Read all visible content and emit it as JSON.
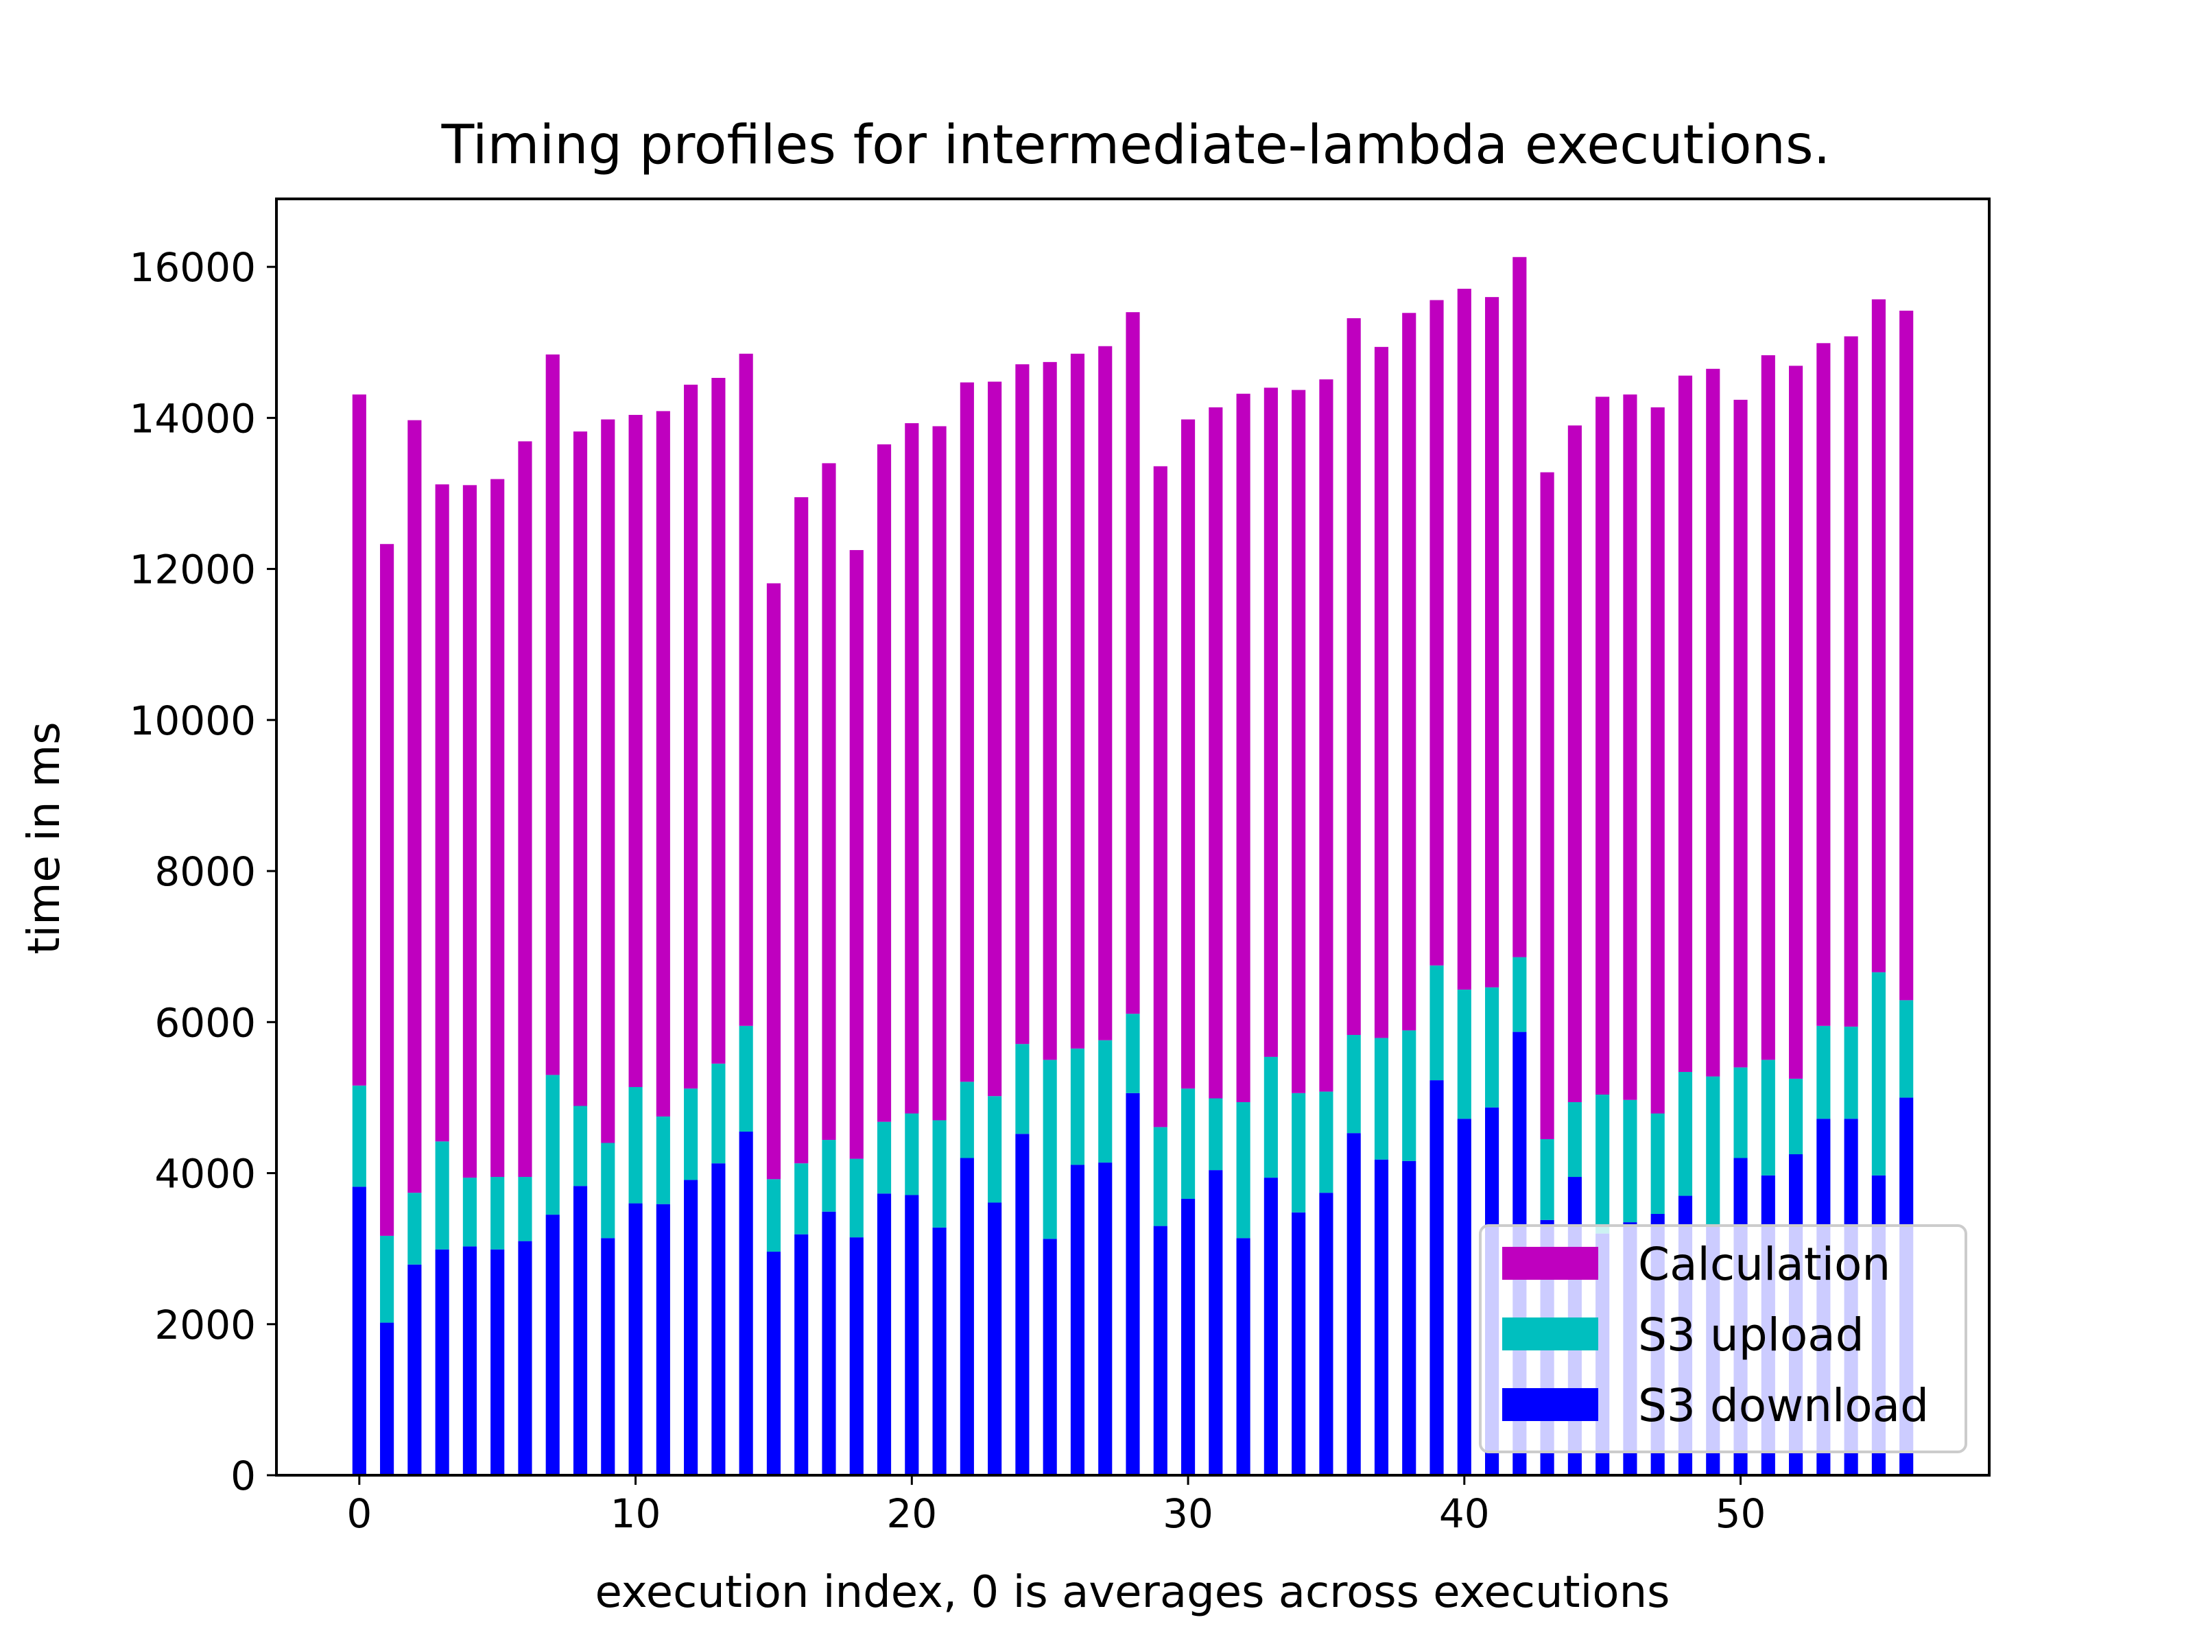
{
  "chart_data": {
    "type": "bar",
    "stacked": true,
    "title": "Timing profiles for intermediate-lambda executions.",
    "xlabel": "execution index, 0 is averages across executions",
    "ylabel": "time in ms",
    "xlim": [
      -3,
      59
    ],
    "ylim": [
      0,
      16900
    ],
    "xticks": [
      0,
      10,
      20,
      30,
      40,
      50
    ],
    "yticks": [
      0,
      2000,
      4000,
      6000,
      8000,
      10000,
      12000,
      14000,
      16000
    ],
    "legend_position": "lower-right",
    "grid": false,
    "x": [
      0,
      1,
      2,
      3,
      4,
      5,
      6,
      7,
      8,
      9,
      10,
      11,
      12,
      13,
      14,
      15,
      16,
      17,
      18,
      19,
      20,
      21,
      22,
      23,
      24,
      25,
      26,
      27,
      28,
      29,
      30,
      31,
      32,
      33,
      34,
      35,
      36,
      37,
      38,
      39,
      40,
      41,
      42,
      43,
      44,
      45,
      46,
      47,
      48,
      49,
      50,
      51,
      52,
      53,
      54,
      55,
      56
    ],
    "series": [
      {
        "name": "S3 download",
        "color": "#0000ff",
        "values": [
          3820,
          2020,
          2790,
          2990,
          3030,
          2990,
          3100,
          3450,
          3830,
          3140,
          3600,
          3590,
          3910,
          4130,
          4550,
          2960,
          3190,
          3490,
          3150,
          3730,
          3710,
          3280,
          4200,
          3610,
          4520,
          3130,
          4110,
          4140,
          5060,
          3300,
          3660,
          4040,
          3140,
          3940,
          3480,
          3740,
          4530,
          4180,
          4160,
          5230,
          4720,
          4870,
          5870,
          3380,
          3950,
          3200,
          3350,
          3460,
          3700,
          3300,
          4200,
          3970,
          4250,
          4720,
          4720,
          3970,
          5000
        ]
      },
      {
        "name": "S3 upload",
        "color": "#00bfbf",
        "values": [
          1340,
          1150,
          950,
          1430,
          910,
          960,
          850,
          1850,
          1060,
          1260,
          1540,
          1160,
          1210,
          1320,
          1400,
          960,
          940,
          950,
          1040,
          950,
          1080,
          1420,
          1010,
          1410,
          1190,
          2370,
          1540,
          1620,
          1050,
          1310,
          1460,
          950,
          1800,
          1600,
          1580,
          1340,
          1300,
          1610,
          1730,
          1520,
          1710,
          1590,
          990,
          1070,
          990,
          1840,
          1620,
          1330,
          1640,
          1980,
          1200,
          1530,
          1000,
          1230,
          1220,
          2690,
          1290
        ]
      },
      {
        "name": "Calculation",
        "color": "#bf00bf",
        "values": [
          9150,
          9160,
          10230,
          8700,
          9170,
          9240,
          9740,
          9540,
          8930,
          9580,
          8900,
          9340,
          9320,
          9080,
          8900,
          7890,
          8820,
          8960,
          8060,
          8970,
          9140,
          9190,
          9260,
          9460,
          9000,
          9240,
          9200,
          9190,
          9290,
          8750,
          8860,
          9150,
          9380,
          8860,
          9310,
          9430,
          9490,
          9150,
          9500,
          8810,
          9280,
          9140,
          9270,
          8830,
          8960,
          9240,
          9340,
          9350,
          9220,
          9370,
          8840,
          9330,
          9440,
          9040,
          9140,
          8910,
          9130
        ]
      }
    ]
  }
}
